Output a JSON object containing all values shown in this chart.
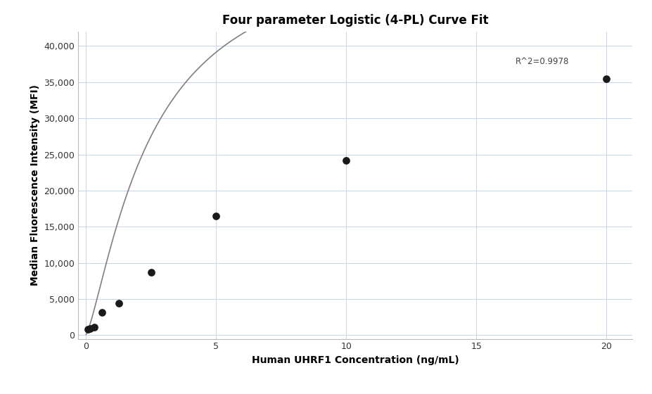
{
  "title": "Four parameter Logistic (4-PL) Curve Fit",
  "xlabel": "Human UHRF1 Concentration (ng/mL)",
  "ylabel": "Median Fluorescence Intensity (MFI)",
  "scatter_x": [
    0.078,
    0.156,
    0.313,
    0.625,
    1.25,
    2.5,
    5.0,
    10.0,
    20.0
  ],
  "scatter_y": [
    800,
    900,
    1100,
    3200,
    4400,
    8700,
    16500,
    24200,
    35500
  ],
  "xlim": [
    -0.3,
    21.0
  ],
  "ylim": [
    -500,
    42000
  ],
  "xticks": [
    0,
    5,
    10,
    15,
    20
  ],
  "yticks": [
    0,
    5000,
    10000,
    15000,
    20000,
    25000,
    30000,
    35000,
    40000
  ],
  "r_squared": "R^2=0.9978",
  "r2_x": 16.5,
  "r2_y": 37200,
  "curve_color": "#808080",
  "scatter_color": "#1a1a1a",
  "scatter_size": 60,
  "background_color": "#ffffff",
  "grid_color": "#c8d4e8",
  "title_fontsize": 12,
  "label_fontsize": 10,
  "annotation_fontsize": 8.5,
  "four_pl_A": 100.0,
  "four_pl_B": 1.3,
  "four_pl_C": 2.5,
  "four_pl_D": 55000.0
}
